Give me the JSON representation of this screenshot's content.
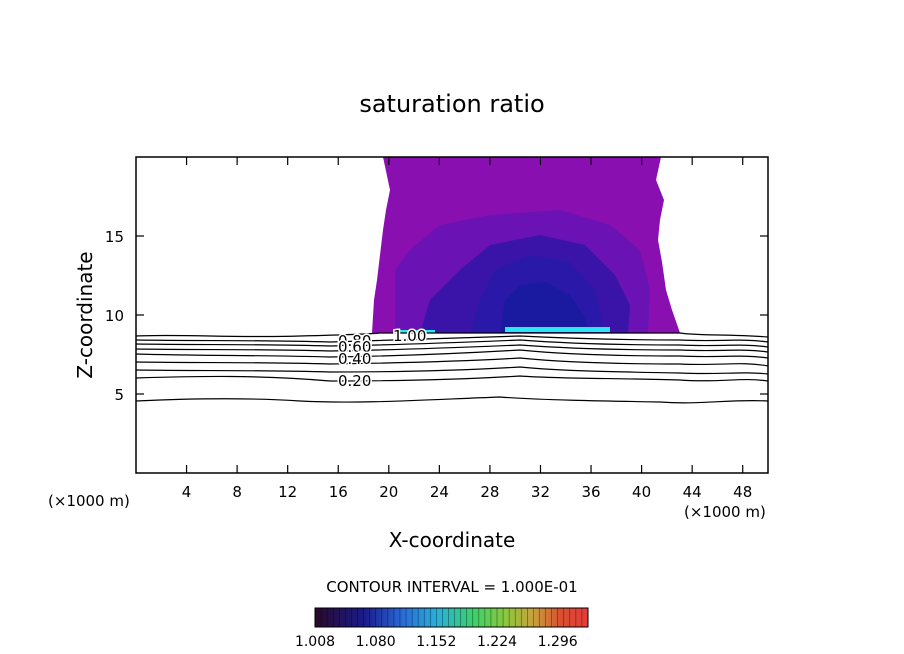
{
  "chart_data": {
    "type": "contour",
    "title": "saturation ratio",
    "xlabel": "X-coordinate",
    "ylabel": "Z-coordinate",
    "x_unit": "(×1000 m)",
    "x_unit_right": "(×1000 m)",
    "xlim": [
      0,
      50
    ],
    "ylim": [
      0,
      20
    ],
    "x_ticks": [
      4,
      8,
      12,
      16,
      20,
      24,
      28,
      32,
      36,
      40,
      44,
      48
    ],
    "y_ticks": [
      5,
      10,
      15
    ],
    "contour_interval_text": "CONTOUR INTERVAL = 1.000E-01",
    "contour_line_levels": [
      0.2,
      0.4,
      0.6,
      0.8
    ],
    "contour_labels": [
      "0.20",
      "0.40",
      "0.60",
      "0.80",
      "1.00"
    ],
    "colorbar": {
      "min": 1.008,
      "max": 1.332,
      "tick_labels": [
        "1.008",
        "1.080",
        "1.152",
        "1.224",
        "1.296"
      ],
      "tick_values": [
        1.008,
        1.08,
        1.152,
        1.224,
        1.296
      ]
    },
    "supersaturated_region": {
      "x_range": [
        19,
        43
      ],
      "z_range": [
        8.7,
        20
      ],
      "fill_color": "#8a0fb0",
      "core_color": "#1a1aa0",
      "core_x_range": [
        29,
        37
      ],
      "core_z_range": [
        9,
        13
      ]
    },
    "colors": {
      "background": "#ffffff",
      "axis": "#000000",
      "region_outer": "#8a0fb0",
      "region_mid": "#6a12b4",
      "region_inner": "#3a14a8",
      "region_core": "#1a1aa0",
      "cyan_edge": "#2ee6f0"
    }
  }
}
